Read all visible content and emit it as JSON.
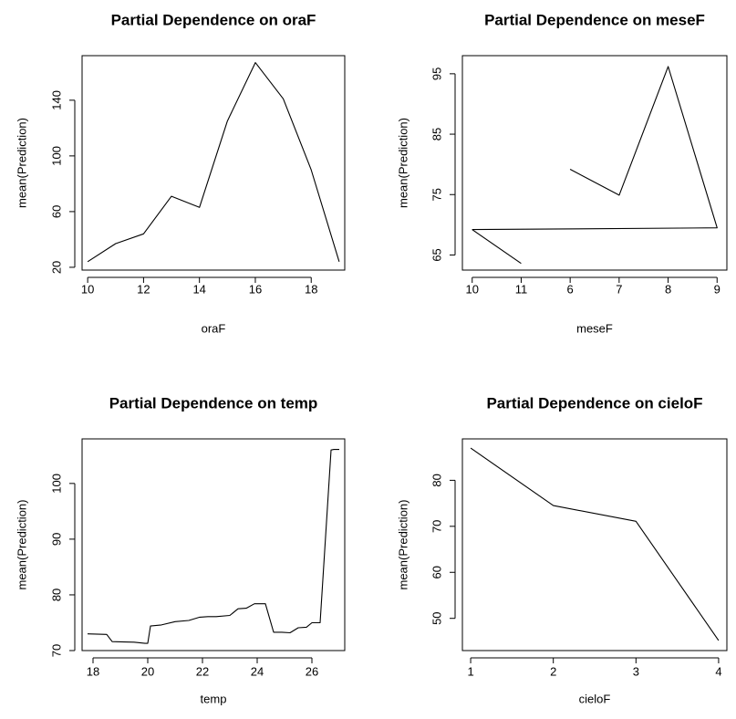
{
  "chart_data": [
    {
      "type": "line",
      "title": "Partial Dependence on oraF",
      "xlabel": "oraF",
      "ylabel": "mean(Prediction)",
      "xlim": [
        9.8,
        19.2
      ],
      "ylim": [
        18,
        172
      ],
      "xticks": [
        10,
        12,
        14,
        16,
        18
      ],
      "xtick_labels": [
        "10",
        "12",
        "14",
        "16",
        "18"
      ],
      "yticks": [
        20,
        60,
        100,
        140
      ],
      "ytick_labels": [
        "20",
        "60",
        "100",
        "140"
      ],
      "x": [
        10,
        11,
        12,
        13,
        14,
        15,
        16,
        17,
        18,
        19
      ],
      "y": [
        24,
        37,
        44,
        71,
        63,
        125,
        167,
        141,
        90,
        24
      ]
    },
    {
      "type": "line",
      "title": "Partial Dependence on meseF",
      "xlabel": "meseF",
      "ylabel": "mean(Prediction)",
      "xlim": [
        0.8,
        6.2
      ],
      "ylim": [
        62.5,
        98
      ],
      "xticks": [
        1,
        2,
        3,
        4,
        5,
        6
      ],
      "xtick_labels": [
        "10",
        "11",
        "6",
        "7",
        "8",
        "9"
      ],
      "yticks": [
        65,
        75,
        85,
        95
      ],
      "ytick_labels": [
        "65",
        "75",
        "85",
        "95"
      ],
      "segments": [
        {
          "x": [
            1,
            2
          ],
          "y": [
            69.2,
            63.6
          ]
        },
        {
          "x": [
            3,
            4,
            5,
            6,
            1
          ],
          "y": [
            79.2,
            74.9,
            96.2,
            69.5,
            69.2
          ]
        }
      ]
    },
    {
      "type": "line",
      "title": "Partial Dependence on temp",
      "xlabel": "temp",
      "ylabel": "mean(Prediction)",
      "xlim": [
        17.6,
        27.2
      ],
      "ylim": [
        70,
        108
      ],
      "xticks": [
        18,
        20,
        22,
        24,
        26
      ],
      "xtick_labels": [
        "18",
        "20",
        "22",
        "24",
        "26"
      ],
      "yticks": [
        70,
        80,
        90,
        100
      ],
      "ytick_labels": [
        "70",
        "80",
        "90",
        "100"
      ],
      "x": [
        17.8,
        18.5,
        18.7,
        19.5,
        19.9,
        20.0,
        20.1,
        20.5,
        21.0,
        21.5,
        21.9,
        22.2,
        22.5,
        23.0,
        23.3,
        23.6,
        23.9,
        24.3,
        24.6,
        24.9,
        25.2,
        25.5,
        25.8,
        26.0,
        26.3,
        26.7,
        26.8,
        27.0
      ],
      "y": [
        73.0,
        72.9,
        71.6,
        71.5,
        71.3,
        71.3,
        74.4,
        74.6,
        75.2,
        75.4,
        76.0,
        76.1,
        76.1,
        76.3,
        77.5,
        77.6,
        78.4,
        78.4,
        73.3,
        73.3,
        73.2,
        74.1,
        74.2,
        75.0,
        75.0,
        106.0,
        106.1,
        106.1
      ]
    },
    {
      "type": "line",
      "title": "Partial Dependence on cieloF",
      "xlabel": "cieloF",
      "ylabel": "mean(Prediction)",
      "xlim": [
        0.9,
        4.1
      ],
      "ylim": [
        43,
        89
      ],
      "xticks": [
        1,
        2,
        3,
        4
      ],
      "xtick_labels": [
        "1",
        "2",
        "3",
        "4"
      ],
      "yticks": [
        50,
        60,
        70,
        80
      ],
      "ytick_labels": [
        "50",
        "60",
        "70",
        "80"
      ],
      "x": [
        1,
        2,
        3,
        4
      ],
      "y": [
        87.0,
        74.5,
        71.1,
        45.2
      ]
    }
  ]
}
